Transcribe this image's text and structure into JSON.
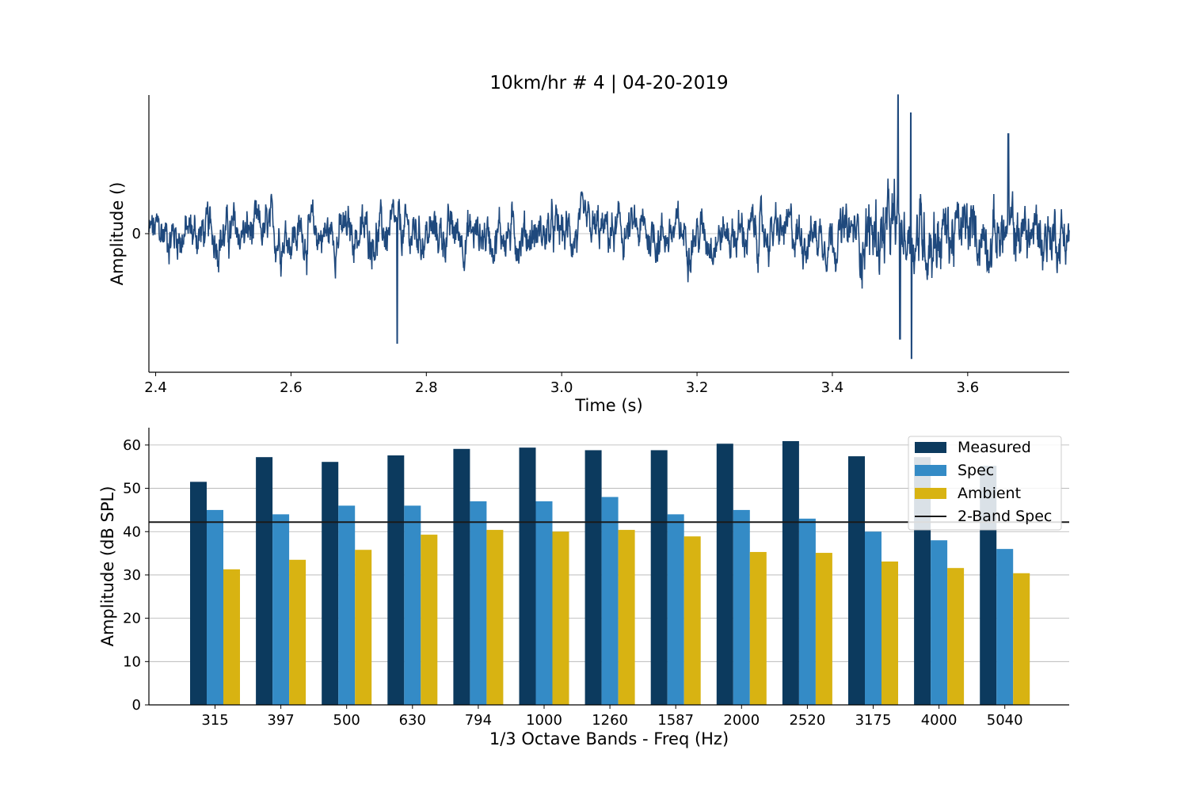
{
  "chart_data": [
    {
      "type": "line",
      "title": "10km/hr # 4 | 04-20-2019",
      "xlabel": "Time (s)",
      "ylabel": "Amplitude ()",
      "xlim": [
        2.39,
        3.75
      ],
      "ylim": [
        -1.0,
        1.0
      ],
      "x_ticks": [
        "2.4",
        "2.6",
        "2.8",
        "3.0",
        "3.2",
        "3.4",
        "3.6"
      ],
      "y_ticks": [
        "0"
      ],
      "grid": "horizontal at 0",
      "series": [
        {
          "color": "#1f497d",
          "description_points": [
            {
              "x": 2.39,
              "y": 0.05
            },
            {
              "x": 2.45,
              "y": -0.12
            },
            {
              "x": 2.52,
              "y": 0.18
            },
            {
              "x": 2.565,
              "y": -0.3
            },
            {
              "x": 2.625,
              "y": 0.46
            },
            {
              "x": 2.68,
              "y": -0.22
            },
            {
              "x": 2.752,
              "y": 0.38
            },
            {
              "x": 2.757,
              "y": -0.79
            },
            {
              "x": 2.85,
              "y": 0.3
            },
            {
              "x": 2.95,
              "y": -0.25
            },
            {
              "x": 3.05,
              "y": 0.25
            },
            {
              "x": 3.09,
              "y": 0.3
            },
            {
              "x": 3.16,
              "y": -0.28
            },
            {
              "x": 3.3,
              "y": 0.22
            },
            {
              "x": 3.4,
              "y": -0.3
            },
            {
              "x": 3.46,
              "y": 0.48
            },
            {
              "x": 3.497,
              "y": 1.0
            },
            {
              "x": 3.5,
              "y": -0.76
            },
            {
              "x": 3.516,
              "y": 0.87
            },
            {
              "x": 3.517,
              "y": -0.9
            },
            {
              "x": 3.6,
              "y": 0.3
            },
            {
              "x": 3.66,
              "y": 0.72
            },
            {
              "x": 3.72,
              "y": 0.45
            },
            {
              "x": 3.75,
              "y": 0.1
            }
          ]
        }
      ]
    },
    {
      "type": "bar",
      "xlabel": "1/3 Octave Bands - Freq (Hz)",
      "ylabel": "Amplitude (dB SPL)",
      "ylim": [
        0,
        64
      ],
      "y_ticks": [
        0,
        10,
        20,
        30,
        40,
        50,
        60
      ],
      "grid": "horizontal",
      "legend": "top-right",
      "categories": [
        "315",
        "397",
        "500",
        "630",
        "794",
        "1000",
        "1260",
        "1587",
        "2000",
        "2520",
        "3175",
        "4000",
        "5040"
      ],
      "series": [
        {
          "name": "Measured",
          "color": "#0c3a5e",
          "values": [
            51.5,
            57.2,
            56.1,
            57.6,
            59.1,
            59.4,
            58.8,
            58.8,
            60.3,
            60.9,
            57.4,
            57.2,
            55.2
          ]
        },
        {
          "name": "Spec",
          "color": "#348bc6",
          "values": [
            45,
            44,
            46,
            46,
            47,
            47,
            48,
            44,
            45,
            43,
            40,
            38,
            36
          ]
        },
        {
          "name": "Ambient",
          "color": "#d8b312",
          "values": [
            31.3,
            33.5,
            35.8,
            39.3,
            40.4,
            40.0,
            40.4,
            38.9,
            35.3,
            35.1,
            33.1,
            31.6,
            30.4
          ]
        }
      ],
      "reference_line": {
        "name": "2-Band Spec",
        "value": 42.2,
        "color": "#1a1a1a"
      }
    }
  ]
}
